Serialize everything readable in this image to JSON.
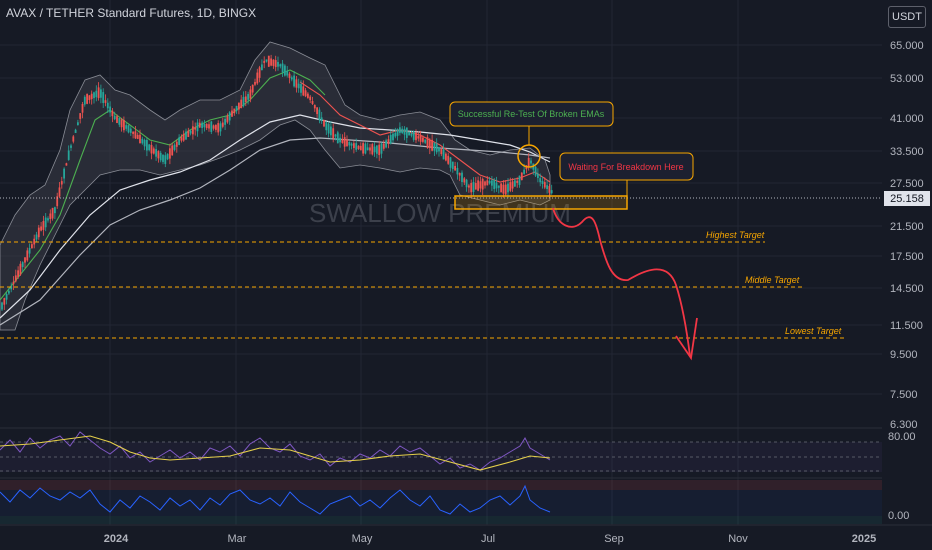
{
  "header": {
    "title": "AVAX / TETHER Standard Futures, 1D, BINGX",
    "currency": "USDT"
  },
  "watermark": "SWALLOW PREMIUM",
  "price_axis": [
    "65.000",
    "53.000",
    "41.000",
    "33.500",
    "27.500",
    "21.500",
    "17.500",
    "14.500",
    "11.500",
    "9.500",
    "7.500",
    "6.300"
  ],
  "current_price": "25.158",
  "indicator_axis": [
    "80.00",
    "0.00"
  ],
  "time_axis": [
    "2024",
    "Mar",
    "May",
    "Jul",
    "Sep",
    "Nov",
    "2025"
  ],
  "annotations": {
    "retest": "Successful Re-Test Of Broken EMAs",
    "breakdown": "Waiting For Breakdown Here"
  },
  "targets": {
    "highest": "Highest Target",
    "middle": "Middle Target",
    "lowest": "Lowest Target"
  },
  "colors": {
    "up": "#26a69a",
    "down": "#ef5350",
    "orange": "#f7a600",
    "projection": "#f23645"
  }
}
